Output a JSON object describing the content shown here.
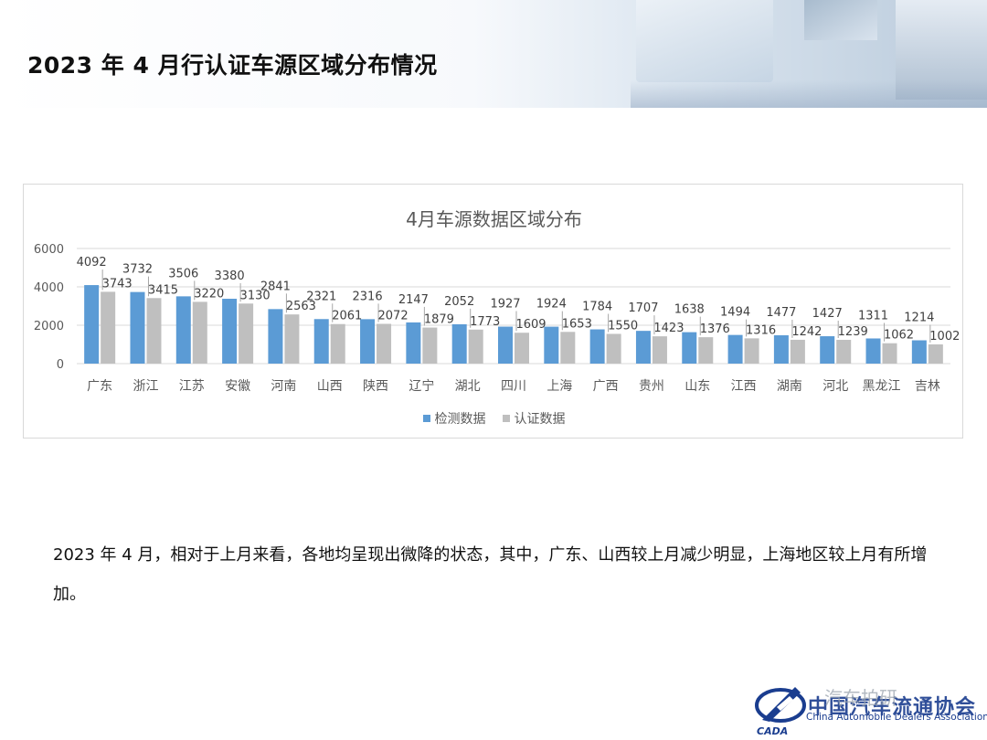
{
  "page": {
    "title": "2023 年 4 月行认证车源区域分布情况",
    "description": "2023 年 4 月，相对于上月来看，各地均呈现出微降的状态，其中，广东、山西较上月减少明显，上海地区较上月有所增加。"
  },
  "footer": {
    "watermark": "汽车拍研",
    "association_cn": "中国汽车流通协会",
    "association_en": "China Automobile Dealers Association",
    "logo_text": "CADA"
  },
  "colors": {
    "series1": "#5b9bd5",
    "series2": "#bfbfbf",
    "axis_text": "#595959",
    "gridline": "#d9d9d9",
    "logo_blue": "#1a3d8f"
  },
  "chart_data": {
    "type": "bar",
    "title": "4月车源数据区域分布",
    "xlabel": "",
    "ylabel": "",
    "ylim": [
      0,
      6000
    ],
    "yticks": [
      0,
      2000,
      4000,
      6000
    ],
    "grid": true,
    "legend_position": "bottom",
    "categories": [
      "广东",
      "浙江",
      "江苏",
      "安徽",
      "河南",
      "山西",
      "陕西",
      "辽宁",
      "湖北",
      "四川",
      "上海",
      "广西",
      "贵州",
      "山东",
      "江西",
      "湖南",
      "河北",
      "黑龙江",
      "吉林"
    ],
    "series": [
      {
        "name": "检测数据",
        "values": [
          4092,
          3732,
          3506,
          3380,
          2841,
          2321,
          2316,
          2147,
          2052,
          1927,
          1924,
          1784,
          1707,
          1638,
          1494,
          1477,
          1427,
          1311,
          1214
        ]
      },
      {
        "name": "认证数据",
        "values": [
          3743,
          3415,
          3220,
          3130,
          2563,
          2061,
          2072,
          1879,
          1773,
          1609,
          1653,
          1550,
          1423,
          1376,
          1316,
          1242,
          1239,
          1062,
          1002
        ]
      }
    ]
  }
}
